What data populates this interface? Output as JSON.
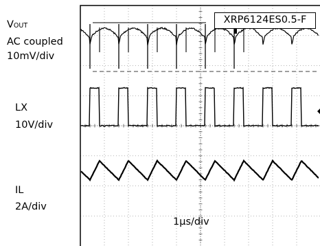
{
  "labels": {
    "vout_main": "V",
    "vout_sub": "OUT",
    "vout_coupling": "AC coupled",
    "vout_scale": "10mV/div",
    "lx_name": "LX",
    "lx_scale": "10V/div",
    "il_name": "IL",
    "il_scale": "2A/div",
    "part_number": "XRP6124ES0.5-F",
    "time_scale": "1μs/div"
  },
  "chart_data": {
    "type": "line",
    "time_per_div": "1μs",
    "period_div": 1.2,
    "divisions_x": 10,
    "divisions_y": 8,
    "series": [
      {
        "name": "V",
        "scale": "10mV/div",
        "coupling": "AC",
        "shape": "ripple with switching spikes",
        "color": "#000000"
      },
      {
        "name": "LX",
        "scale": "10V/div",
        "shape": "square wave, duty about 0.33",
        "color": "#000000"
      },
      {
        "name": "IL",
        "scale": "2A/div",
        "shape": "triangle",
        "color": "#000000"
      }
    ],
    "grid": true
  }
}
